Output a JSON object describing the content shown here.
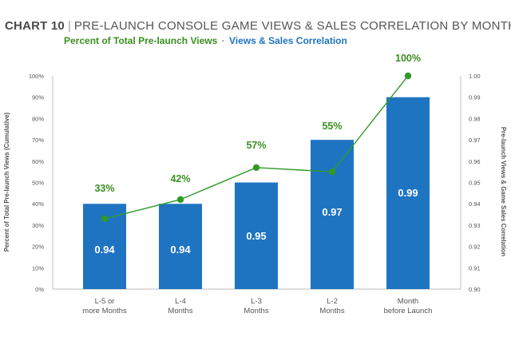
{
  "header": {
    "chart_number": "CHART 10",
    "separator": "|",
    "title": "PRE-LAUNCH CONSOLE GAME VIEWS & SALES CORRELATION BY MONTH"
  },
  "subtitle": {
    "green_part": "Percent of Total Pre-launch Views",
    "separator": "·",
    "blue_part": "Views & Sales Correlation"
  },
  "colors": {
    "bar": "#1f74c2",
    "line": "#2f9a28",
    "green_text": "#3a8f1f",
    "blue_text": "#1f74c2",
    "axis": "#bdbdbd",
    "tick_text": "#555555"
  },
  "chart_data": {
    "type": "bar+line",
    "categories": [
      [
        "L-5 or",
        "more Months"
      ],
      [
        "L-4",
        "Months"
      ],
      [
        "L-3",
        "Months"
      ],
      [
        "L-2",
        "Months"
      ],
      [
        "Month",
        "before Launch"
      ]
    ],
    "series": [
      {
        "name": "Views & Sales Correlation",
        "type": "bar",
        "axis": "right",
        "values": [
          0.94,
          0.94,
          0.95,
          0.97,
          0.99
        ],
        "labels": [
          "0.94",
          "0.94",
          "0.95",
          "0.97",
          "0.99"
        ]
      },
      {
        "name": "Percent of Total Pre-launch Views",
        "type": "line",
        "axis": "left",
        "values": [
          33,
          42,
          57,
          55,
          100
        ],
        "labels": [
          "33%",
          "42%",
          "57%",
          "55%",
          "100%"
        ]
      }
    ],
    "left_axis": {
      "label": "Percent of Total Pre-launch Views (Cumulative)",
      "range": [
        0,
        100
      ],
      "ticks": [
        "0%",
        "10%",
        "20%",
        "30%",
        "40%",
        "50%",
        "60%",
        "70%",
        "80%",
        "90%",
        "100%"
      ]
    },
    "right_axis": {
      "label": "Pre-launch Views & Game Sales Correlation",
      "range": [
        0.9,
        1.0
      ],
      "ticks": [
        "0.90",
        "0.91",
        "0.92",
        "0.93",
        "0.94",
        "0.95",
        "0.96",
        "0.97",
        "0.98",
        "0.99",
        "1.00"
      ]
    }
  }
}
